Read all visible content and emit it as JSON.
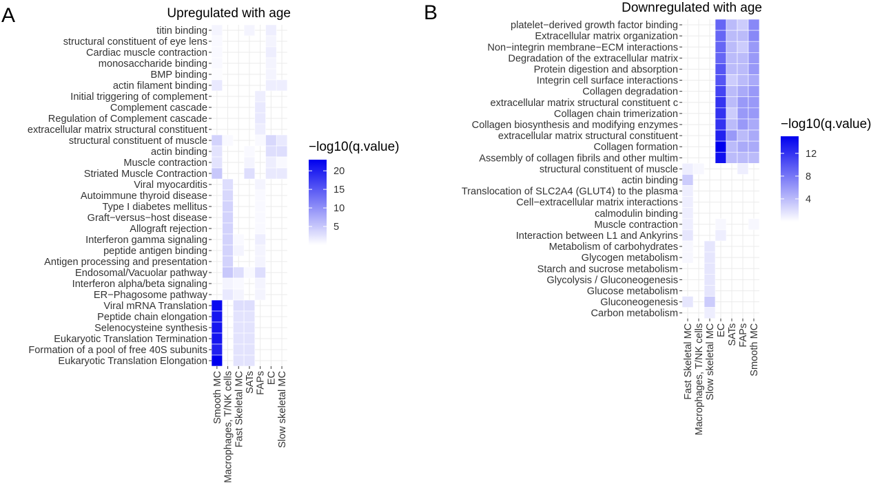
{
  "chart_data": [
    {
      "type": "heatmap",
      "panel": "A",
      "title": "Upregulated with age",
      "legend_title": "−log10(q.value)",
      "legend_ticks": [
        5,
        10,
        15,
        20
      ],
      "value_range": [
        0,
        23
      ],
      "colors": {
        "low": "#ffffff",
        "high": "#0000ee"
      },
      "columns": [
        "Smooth MC",
        "Macrophages, T/NK cells",
        "Fast Skeletal MC",
        "SATs",
        "FAPs",
        "EC",
        "Slow skeletal MC"
      ],
      "rows": [
        "titin binding",
        "structural constituent of eye lens",
        "Cardiac muscle contraction",
        "monosaccharide binding",
        "BMP binding",
        "actin filament binding",
        "Initial triggering of complement",
        "Complement cascade",
        "Regulation of Complement cascade",
        "extracellular matrix structural constituent",
        "structural constituent of muscle",
        "actin binding",
        "Muscle contraction",
        "Striated Muscle Contraction",
        "Viral myocarditis",
        "Autoimmune thyroid disease",
        "Type I diabetes mellitus",
        "Graft−versus−host disease",
        "Allograft rejection",
        "Interferon gamma signaling",
        "peptide antigen binding",
        "Antigen processing and presentation",
        "Endosomal/Vacuolar pathway",
        "Interferon alpha/beta signaling",
        "ER−Phagosome pathway",
        "Viral mRNA Translation",
        "Peptide chain elongation",
        "Selenocysteine synthesis",
        "Eukaryotic Translation Termination",
        "Formation of a pool of free 40S subunits",
        "Eukaryotic Translation Elongation"
      ],
      "values": [
        [
          1,
          0,
          0,
          1,
          0,
          1.5,
          0
        ],
        [
          0.5,
          0,
          0,
          0,
          0,
          1,
          0
        ],
        [
          0.5,
          0,
          0,
          0,
          0,
          1.5,
          0
        ],
        [
          0.5,
          0,
          0,
          0,
          0,
          1,
          0
        ],
        [
          0.3,
          0,
          0,
          0,
          0,
          1,
          0
        ],
        [
          2,
          0,
          0,
          0,
          0,
          1.5,
          1.5
        ],
        [
          0,
          0,
          0,
          0,
          1.5,
          0,
          0
        ],
        [
          0,
          0,
          0,
          0,
          2,
          0,
          0
        ],
        [
          0,
          0,
          0,
          0,
          2,
          0,
          0
        ],
        [
          0,
          0,
          0,
          0,
          1.5,
          0,
          0
        ],
        [
          4,
          0.5,
          0,
          0,
          0.5,
          3.5,
          2
        ],
        [
          2.5,
          0,
          0,
          0.5,
          0,
          3,
          3
        ],
        [
          2.5,
          0,
          0,
          1,
          0,
          1.5,
          0.5
        ],
        [
          5,
          0,
          0,
          3,
          0,
          2,
          2
        ],
        [
          0,
          3,
          0,
          0,
          1,
          0,
          0
        ],
        [
          0,
          3.5,
          0,
          0,
          0.5,
          0,
          0
        ],
        [
          0,
          4,
          0,
          0,
          0.5,
          0,
          0
        ],
        [
          0,
          4,
          0,
          0,
          0.5,
          0,
          0
        ],
        [
          0,
          4,
          0,
          0,
          0.5,
          0,
          0
        ],
        [
          0,
          4,
          0.5,
          0,
          1.5,
          0,
          0
        ],
        [
          0,
          4,
          1,
          0,
          1,
          0,
          0
        ],
        [
          0,
          4,
          0,
          0,
          1,
          0,
          0
        ],
        [
          0,
          5,
          3,
          0.5,
          3,
          0,
          0
        ],
        [
          0,
          1,
          0.5,
          0,
          1,
          0,
          0
        ],
        [
          0,
          2,
          1,
          0,
          1,
          0,
          0
        ],
        [
          22,
          0,
          3,
          3,
          0,
          0,
          0
        ],
        [
          21,
          0,
          2.5,
          2.5,
          0,
          0,
          0
        ],
        [
          21,
          0,
          2.5,
          2.5,
          0,
          0,
          0
        ],
        [
          21,
          0,
          2.5,
          2.5,
          0,
          0,
          0
        ],
        [
          20,
          0,
          2.5,
          2.5,
          0,
          0,
          0
        ],
        [
          23,
          0,
          2.5,
          2.5,
          0,
          0,
          0
        ]
      ]
    },
    {
      "type": "heatmap",
      "panel": "B",
      "title": "Downregulated with age",
      "legend_title": "−log10(q.value)",
      "legend_ticks": [
        4,
        8,
        12
      ],
      "value_range": [
        0,
        15
      ],
      "colors": {
        "low": "#ffffff",
        "high": "#0000ee"
      },
      "columns": [
        "Fast Skeletal MC",
        "Macrophages, T/NK cells",
        "Slow skeletal MC",
        "EC",
        "SATs",
        "FAPs",
        "Smooth MC"
      ],
      "rows": [
        "platelet−derived growth factor binding",
        "Extracellular matrix organization",
        "Non−integrin membrane−ECM interactions",
        "Degradation of the extracellular matrix",
        "Protein digestion and absorption",
        "Integrin cell surface interactions",
        "Collagen degradation",
        "extracellular matrix structural constituent c",
        "Collagen chain trimerization",
        "Collagen biosynthesis and modifying enzymes",
        "extracellular matrix structural constituent",
        "Collagen formation",
        "Assembly of collagen fibrils and other multim",
        "structural constituent of muscle",
        "actin binding",
        "Translocation of SLC2A4 (GLUT4) to the plasma",
        "Cell−extracellular matrix interactions",
        "calmodulin binding",
        "Muscle contraction",
        "Interaction between L1 and Ankyrins",
        "Metabolism of carbohydrates",
        "Glycogen metabolism",
        "Starch and sucrose metabolism",
        "Glycolysis / Gluconeogenesis",
        "Glucose metabolism",
        "Gluconeogenesis",
        "Carbon metabolism"
      ],
      "values": [
        [
          0,
          0,
          0,
          9,
          4,
          3,
          7
        ],
        [
          0,
          0,
          0,
          9,
          4,
          4,
          7
        ],
        [
          0,
          0,
          0,
          9,
          4,
          3,
          6
        ],
        [
          0,
          0,
          0,
          9,
          4,
          4,
          6
        ],
        [
          0,
          0,
          0,
          10,
          4,
          4,
          6
        ],
        [
          0,
          0,
          0,
          10,
          3,
          4,
          5
        ],
        [
          0,
          0,
          0,
          11,
          4,
          5,
          6
        ],
        [
          0,
          0,
          0,
          12,
          4,
          6,
          6
        ],
        [
          0,
          0,
          0,
          12,
          3,
          6,
          6
        ],
        [
          0,
          0,
          0,
          12,
          4,
          6,
          5
        ],
        [
          0,
          0,
          0,
          13,
          6,
          4,
          5
        ],
        [
          0,
          0,
          0,
          15,
          4,
          5,
          5
        ],
        [
          0,
          0,
          0,
          14,
          4,
          4,
          4
        ],
        [
          1,
          0.5,
          0,
          0,
          0,
          1,
          0
        ],
        [
          3,
          0,
          0,
          0,
          0,
          0,
          0
        ],
        [
          1,
          0,
          0,
          0,
          0,
          0,
          0
        ],
        [
          1,
          0,
          0,
          0,
          0,
          0,
          0
        ],
        [
          1,
          0,
          0,
          0,
          0,
          0,
          0
        ],
        [
          1,
          0,
          0,
          0.5,
          0,
          0,
          0.5
        ],
        [
          1.5,
          0,
          0,
          1,
          0,
          0,
          0
        ],
        [
          0.5,
          0,
          1.5,
          0,
          0,
          0,
          0
        ],
        [
          0.5,
          0,
          1.5,
          0,
          0,
          0,
          0
        ],
        [
          0,
          0,
          1.5,
          0,
          0,
          0,
          0
        ],
        [
          0,
          0,
          1.5,
          0,
          0,
          0,
          0
        ],
        [
          0,
          0,
          1.5,
          0,
          0,
          0,
          0
        ],
        [
          1.5,
          0,
          3,
          0,
          0,
          0,
          0
        ],
        [
          0,
          0,
          1,
          0,
          0,
          0,
          0
        ]
      ]
    }
  ]
}
